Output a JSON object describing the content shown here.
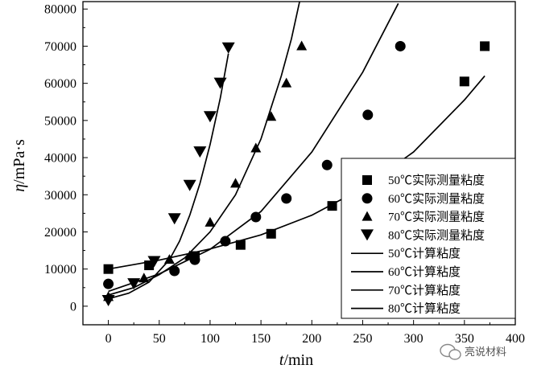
{
  "chart_data": {
    "type": "scatter",
    "xlabel_italic": "t",
    "xlabel_rest": "/min",
    "ylabel_italic": "η",
    "ylabel_rest": "/mPa·s",
    "xlim": [
      -25,
      400
    ],
    "ylim": [
      -5000,
      82000
    ],
    "xticks": [
      0,
      50,
      100,
      150,
      200,
      250,
      300,
      350,
      400
    ],
    "yticks": [
      0,
      10000,
      20000,
      30000,
      40000,
      50000,
      60000,
      70000,
      80000
    ],
    "grid": false,
    "legend_position": "right",
    "series": [
      {
        "name": "50℃实际测量粘度",
        "kind": "measured",
        "marker": "square",
        "x": [
          0,
          40,
          85,
          130,
          160,
          220,
          350,
          370
        ],
        "y": [
          10000,
          11000,
          13500,
          16500,
          19500,
          27000,
          60500,
          70000
        ]
      },
      {
        "name": "60℃实际测量粘度",
        "kind": "measured",
        "marker": "circle",
        "x": [
          0,
          65,
          85,
          115,
          145,
          175,
          215,
          255,
          287
        ],
        "y": [
          6000,
          9500,
          12500,
          17500,
          24000,
          29000,
          38000,
          51500,
          70000
        ]
      },
      {
        "name": "70℃实际测量粘度",
        "kind": "measured",
        "marker": "triangle-up",
        "x": [
          0,
          35,
          60,
          80,
          100,
          125,
          145,
          160,
          175,
          190
        ],
        "y": [
          2500,
          7500,
          12500,
          13500,
          22500,
          33000,
          42500,
          51000,
          60000,
          70000
        ]
      },
      {
        "name": "80℃实际测量粘度",
        "kind": "measured",
        "marker": "triangle-down",
        "x": [
          0,
          25,
          45,
          65,
          80,
          90,
          100,
          110,
          118
        ],
        "y": [
          1500,
          6000,
          12000,
          23500,
          32500,
          41500,
          51000,
          60000,
          69500
        ]
      },
      {
        "name": "50℃计算粘度",
        "kind": "calculated",
        "x": [
          0,
          50,
          100,
          150,
          200,
          250,
          300,
          350,
          370
        ],
        "y": [
          10000,
          12400,
          15400,
          19200,
          24500,
          31800,
          41500,
          55500,
          62000
        ]
      },
      {
        "name": "60℃计算粘度",
        "kind": "calculated",
        "x": [
          0,
          50,
          100,
          150,
          200,
          250,
          285
        ],
        "y": [
          4000,
          8700,
          15300,
          25500,
          41500,
          63000,
          81500
        ]
      },
      {
        "name": "70℃计算粘度",
        "kind": "calculated",
        "x": [
          0,
          25,
          50,
          75,
          100,
          125,
          150,
          170,
          180,
          188
        ],
        "y": [
          3000,
          5000,
          8500,
          13000,
          20000,
          30000,
          45000,
          62000,
          72000,
          82000
        ]
      },
      {
        "name": "80℃计算粘度",
        "kind": "calculated",
        "x": [
          0,
          20,
          40,
          60,
          70,
          80,
          90,
          100,
          110,
          118
        ],
        "y": [
          2000,
          3500,
          6500,
          12500,
          17500,
          24500,
          33000,
          43500,
          56000,
          68000
        ]
      }
    ]
  },
  "watermark": {
    "text": "亮说材料",
    "icon": "wechat-icon"
  }
}
